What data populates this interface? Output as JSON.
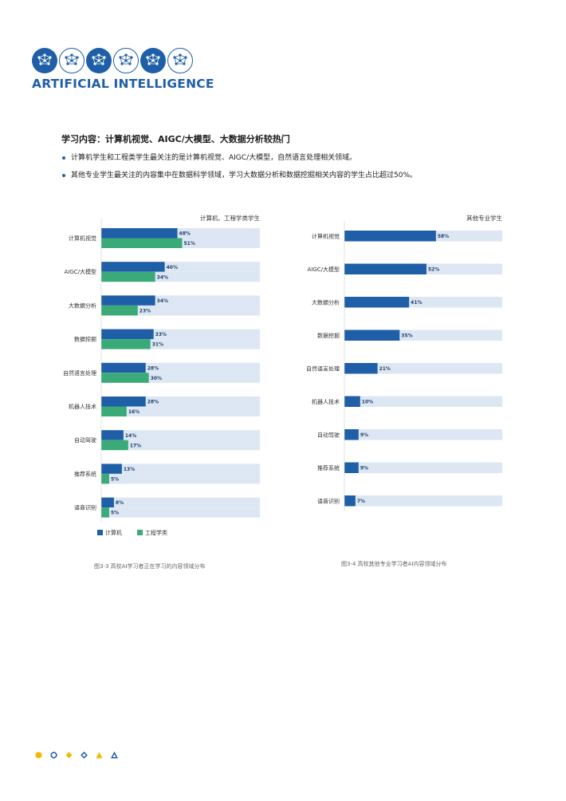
{
  "header": {
    "brand": "ARTIFICIAL INTELLIGENCE",
    "logo_icons": [
      "ai-brain-icon",
      "ai-brain-outline-icon",
      "ai-brain-icon",
      "ai-brain-outline-icon",
      "ai-brain-icon",
      "ai-brain-outline-icon"
    ]
  },
  "section": {
    "title": "学习内容：计算机视觉、AIGC/大模型、大数据分析较热门",
    "bullets": [
      "计算机学生和工程类学生最关注的是计算机视觉、AIGC/大模型，自然语言处理相关领域。",
      "其他专业学生最关注的内容集中在数据科学领域，学习大数据分析和数据挖掘相关内容的学生占比超过50%。"
    ]
  },
  "colors": {
    "computer": "#1f5fa8",
    "engineering": "#3aaa78",
    "track": "#dde7f3",
    "brand": "#1f5fa8",
    "accent": "#f5b800"
  },
  "chart_data": [
    {
      "type": "bar",
      "orientation": "horizontal",
      "title": "计算机、工程学类学生",
      "caption": "图3-3 高校AI学习者正在学习的内容领域分布",
      "categories": [
        "计算机视觉",
        "AIGC/大模型",
        "大数据分析",
        "数据挖掘",
        "自然语言处理",
        "机器人技术",
        "自动驾驶",
        "推荐系统",
        "语音识别"
      ],
      "series": [
        {
          "name": "计算机",
          "values": [
            48,
            40,
            34,
            33,
            28,
            28,
            14,
            13,
            8
          ]
        },
        {
          "name": "工程学类",
          "values": [
            51,
            34,
            23,
            31,
            30,
            16,
            17,
            5,
            5
          ]
        }
      ],
      "value_suffix": "%",
      "legend_position": "bottom-left",
      "xlim": [
        0,
        100
      ]
    },
    {
      "type": "bar",
      "orientation": "horizontal",
      "title": "其他专业学生",
      "caption": "图3-4 高校其他专业学习者AI内容领域分布",
      "categories": [
        "计算机视觉",
        "AIGC/大模型",
        "大数据分析",
        "数据挖掘",
        "自然语言处理",
        "机器人技术",
        "自动驾驶",
        "推荐系统",
        "语音识别"
      ],
      "series": [
        {
          "name": "其他专业",
          "values": [
            58,
            52,
            41,
            35,
            21,
            10,
            9,
            9,
            7
          ]
        }
      ],
      "value_suffix": "%",
      "xlim": [
        0,
        100
      ]
    }
  ],
  "footer": {
    "shape_icons": [
      "circle-filled-icon",
      "circle-outline-icon",
      "diamond-filled-icon",
      "diamond-outline-icon",
      "triangle-filled-icon",
      "triangle-outline-icon"
    ]
  }
}
